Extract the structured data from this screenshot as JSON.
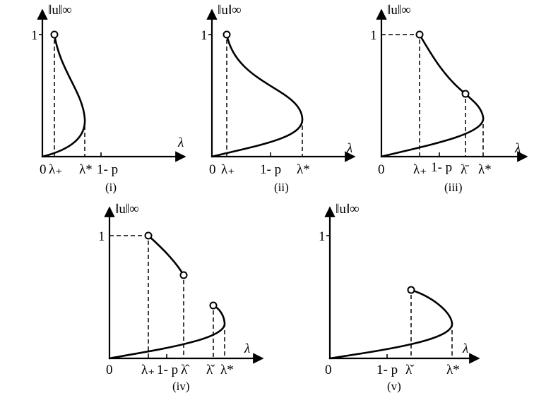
{
  "panels": {
    "p1": {
      "caption": "(i)",
      "ylabel": "‖u‖∞",
      "xlabel": "λ",
      "y_one": "1",
      "x_zero": "0",
      "x_ticks": [
        "λ₊",
        "λ*",
        "1- p"
      ]
    },
    "p2": {
      "caption": "(ii)",
      "ylabel": "‖u‖∞",
      "xlabel": "λ",
      "y_one": "1",
      "x_zero": "0",
      "x_ticks": [
        "λ₊",
        "1- p",
        "λ*"
      ]
    },
    "p3": {
      "caption": "(iii)",
      "ylabel": "‖u‖∞",
      "xlabel": "λ",
      "y_one": "1",
      "x_zero": "0",
      "x_ticks": [
        "λ₊",
        "1- p",
        "λ̄",
        "λ*"
      ]
    },
    "p4": {
      "caption": "(iv)",
      "ylabel": "‖u‖∞",
      "xlabel": "λ",
      "y_one": "1",
      "x_zero": "0",
      "x_ticks": [
        "λ₊",
        "1- p",
        "λ̂",
        "λ̌",
        "λ*"
      ]
    },
    "p5": {
      "caption": "(v)",
      "ylabel": "‖u‖∞",
      "xlabel": "λ",
      "y_one": "1",
      "x_zero": "0",
      "x_ticks": [
        "1- p",
        "λ̌",
        "λ*"
      ]
    }
  }
}
